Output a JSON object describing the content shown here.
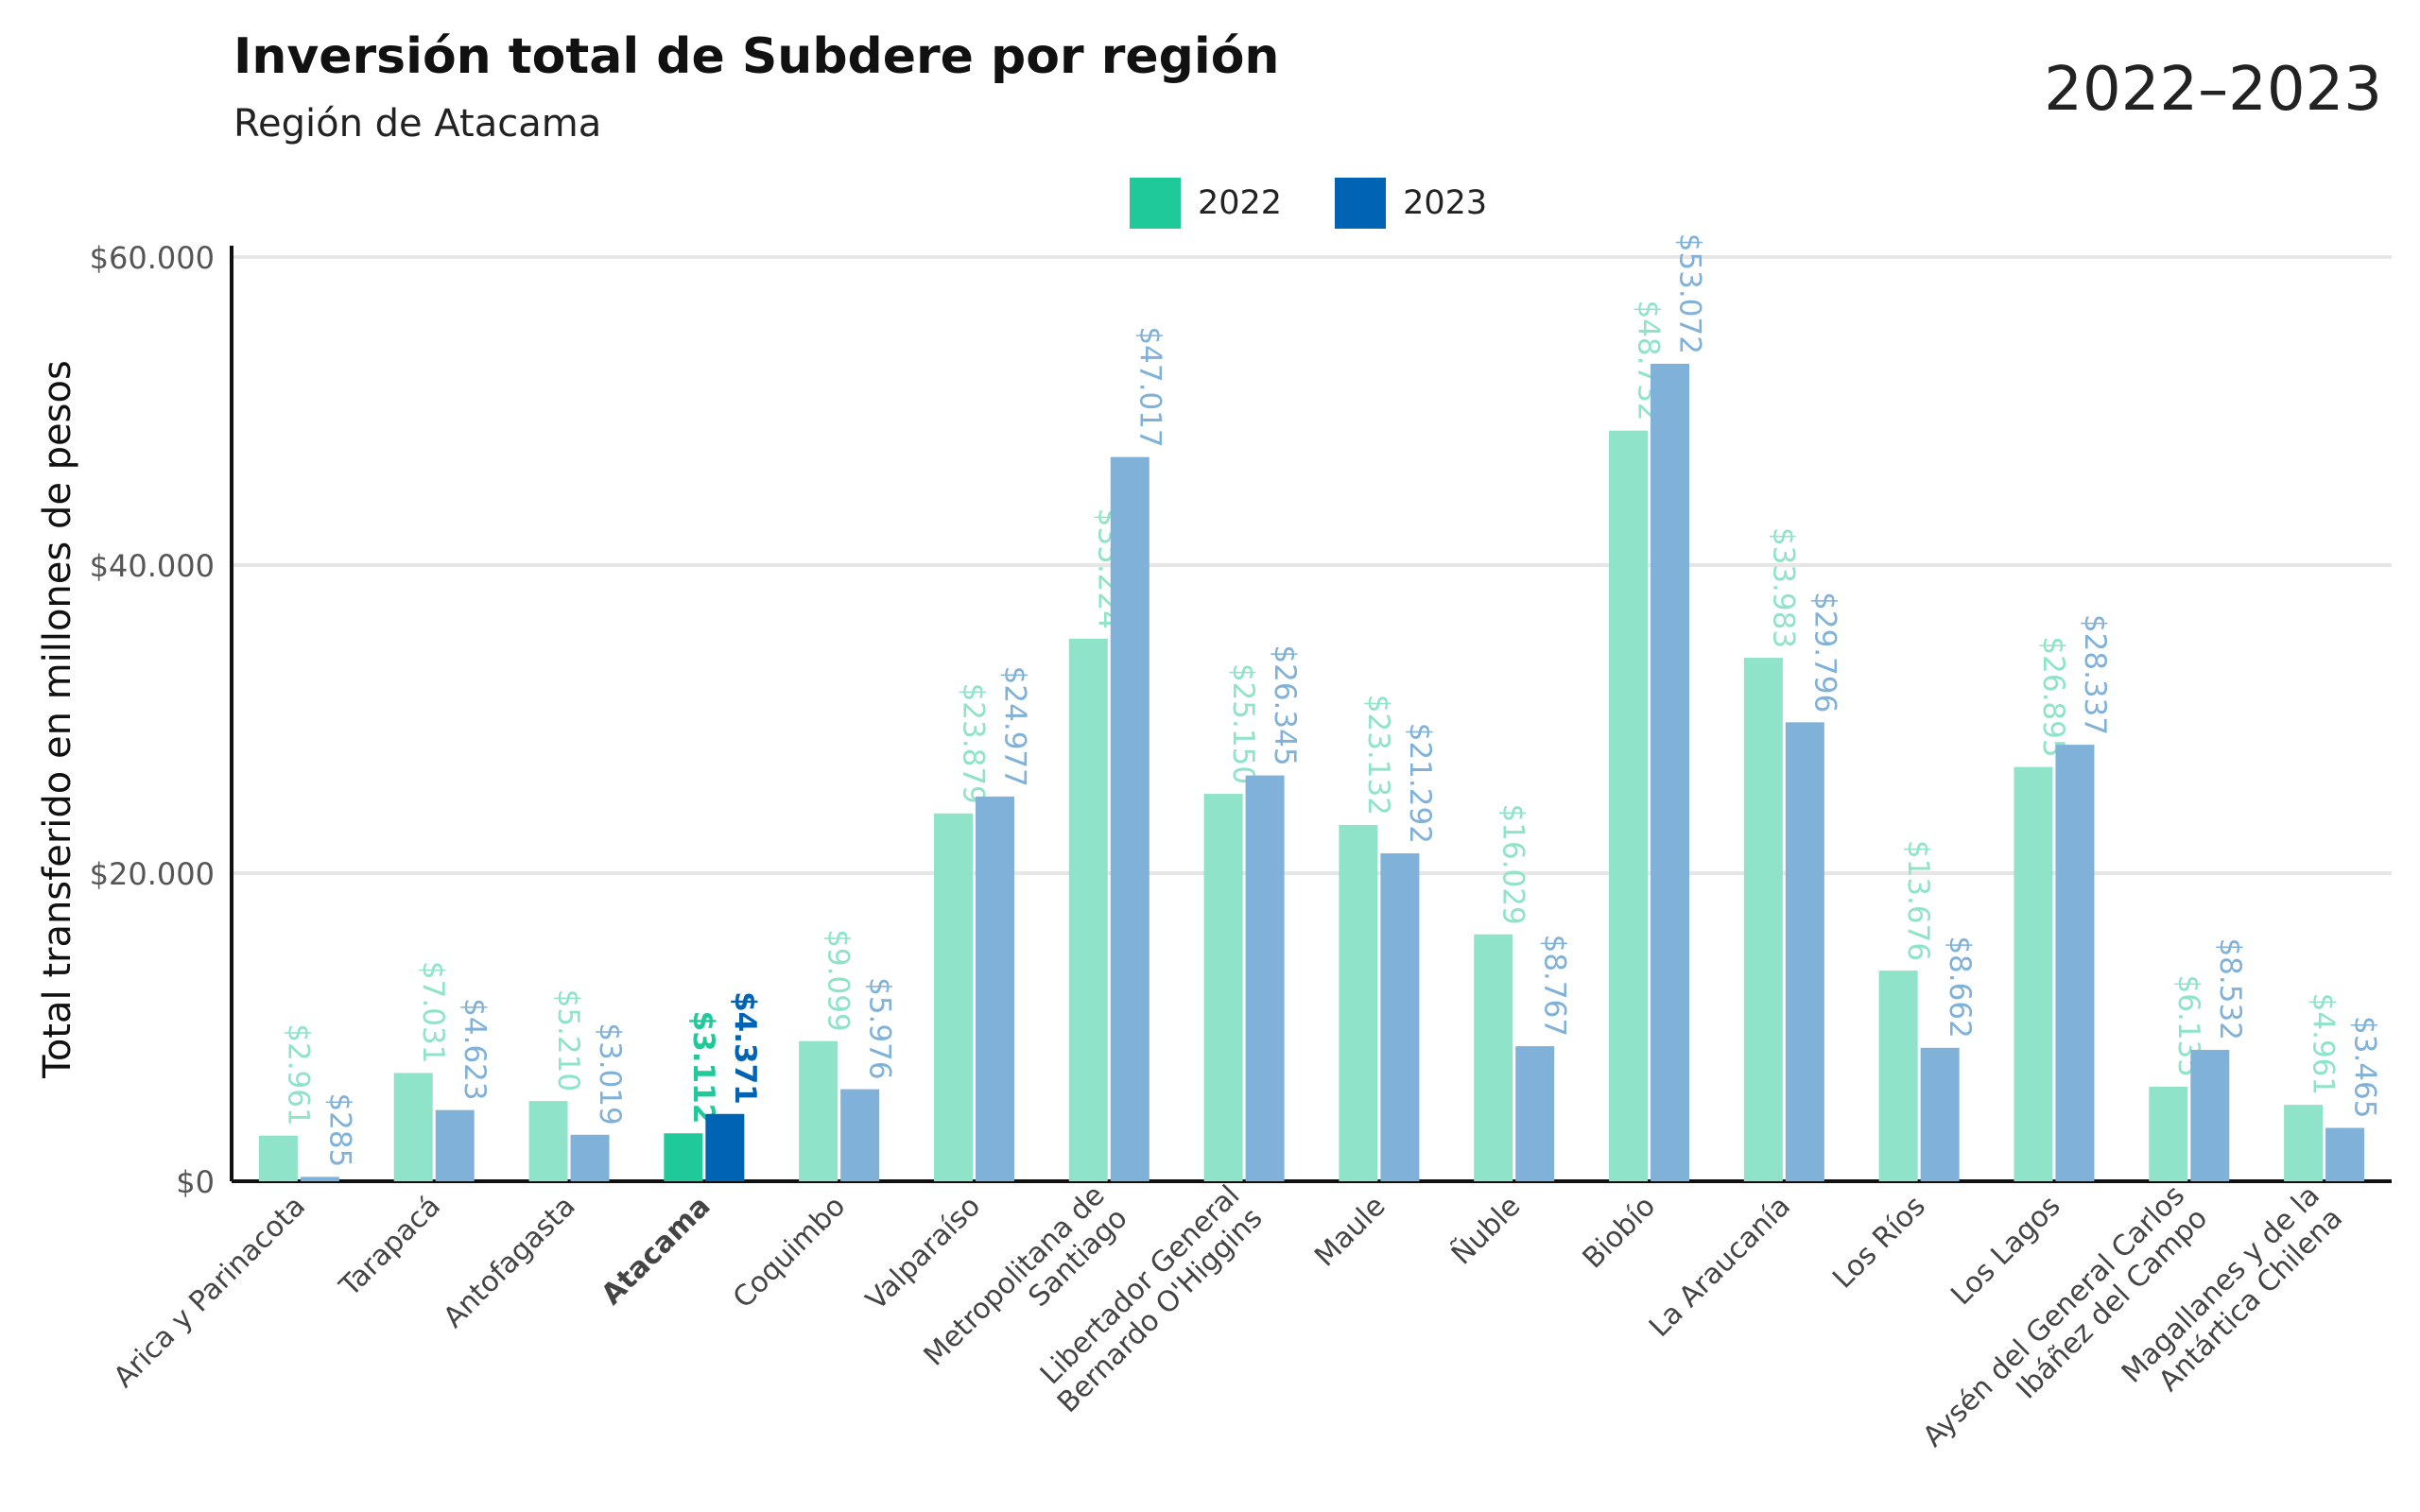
{
  "chart_data": {
    "type": "bar",
    "title": "Inversión total de Subdere por región",
    "subtitle": "Región de Atacama",
    "period": "2022–2023",
    "ylabel": "Total transferido en millones de pesos",
    "xlabel": "",
    "ylim": [
      0,
      60000
    ],
    "yticks": [
      0,
      20000,
      40000,
      60000
    ],
    "ytick_labels": [
      "$0",
      "$20.000",
      "$40.000",
      "$60.000"
    ],
    "grid": true,
    "legend_position": "top-center",
    "highlight_category": "Atacama",
    "categories": [
      "Arica y Parinacota",
      "Tarapacá",
      "Antofagasta",
      "Atacama",
      "Coquimbo",
      "Valparaíso",
      "Metropolitana de Santiago",
      "Libertador General Bernardo O'Higgins",
      "Maule",
      "Ñuble",
      "Biobío",
      "La Araucanía",
      "Los Ríos",
      "Los Lagos",
      "Aysén del General Carlos Ibáñez del Campo",
      "Magallanes y de la Antártica Chilena"
    ],
    "category_lines": [
      [
        "Arica y Parinacota"
      ],
      [
        "Tarapacá"
      ],
      [
        "Antofagasta"
      ],
      [
        "Atacama"
      ],
      [
        "Coquimbo"
      ],
      [
        "Valparaíso"
      ],
      [
        "Metropolitana de",
        "Santiago"
      ],
      [
        "Libertador General",
        "Bernardo O'Higgins"
      ],
      [
        "Maule"
      ],
      [
        "Ñuble"
      ],
      [
        "Biobío"
      ],
      [
        "La Araucanía"
      ],
      [
        "Los Ríos"
      ],
      [
        "Los Lagos"
      ],
      [
        "Aysén del General Carlos",
        "Ibáñez del Campo"
      ],
      [
        "Magallanes y de la",
        "Antártica Chilena"
      ]
    ],
    "series": [
      {
        "name": "2022",
        "color": "#8ee3c8",
        "highlight_color": "#1fc999",
        "values": [
          2961,
          7031,
          5210,
          3112,
          9099,
          23879,
          35224,
          25150,
          23132,
          16029,
          48732,
          33983,
          13676,
          26895,
          6135,
          4961
        ],
        "labels": [
          "$2.961",
          "$7.031",
          "$5.210",
          "$3.112",
          "$9.099",
          "$23.879",
          "$35.224",
          "$25.150",
          "$23.132",
          "$16.029",
          "$48.732",
          "$33.983",
          "$13.676",
          "$26.895",
          "$6.135",
          "$4.961"
        ]
      },
      {
        "name": "2023",
        "color": "#80b1d9",
        "highlight_color": "#0063b3",
        "values": [
          285,
          4623,
          3019,
          4371,
          5976,
          24977,
          47017,
          26345,
          21292,
          8767,
          53072,
          29796,
          8662,
          28337,
          8532,
          3465
        ],
        "labels": [
          "$285",
          "$4.623",
          "$3.019",
          "$4.371",
          "$5.976",
          "$24.977",
          "$47.017",
          "$26.345",
          "$21.292",
          "$8.767",
          "$53.072",
          "$29.796",
          "$8.662",
          "$28.337",
          "$8.532",
          "$3.465"
        ]
      }
    ]
  }
}
